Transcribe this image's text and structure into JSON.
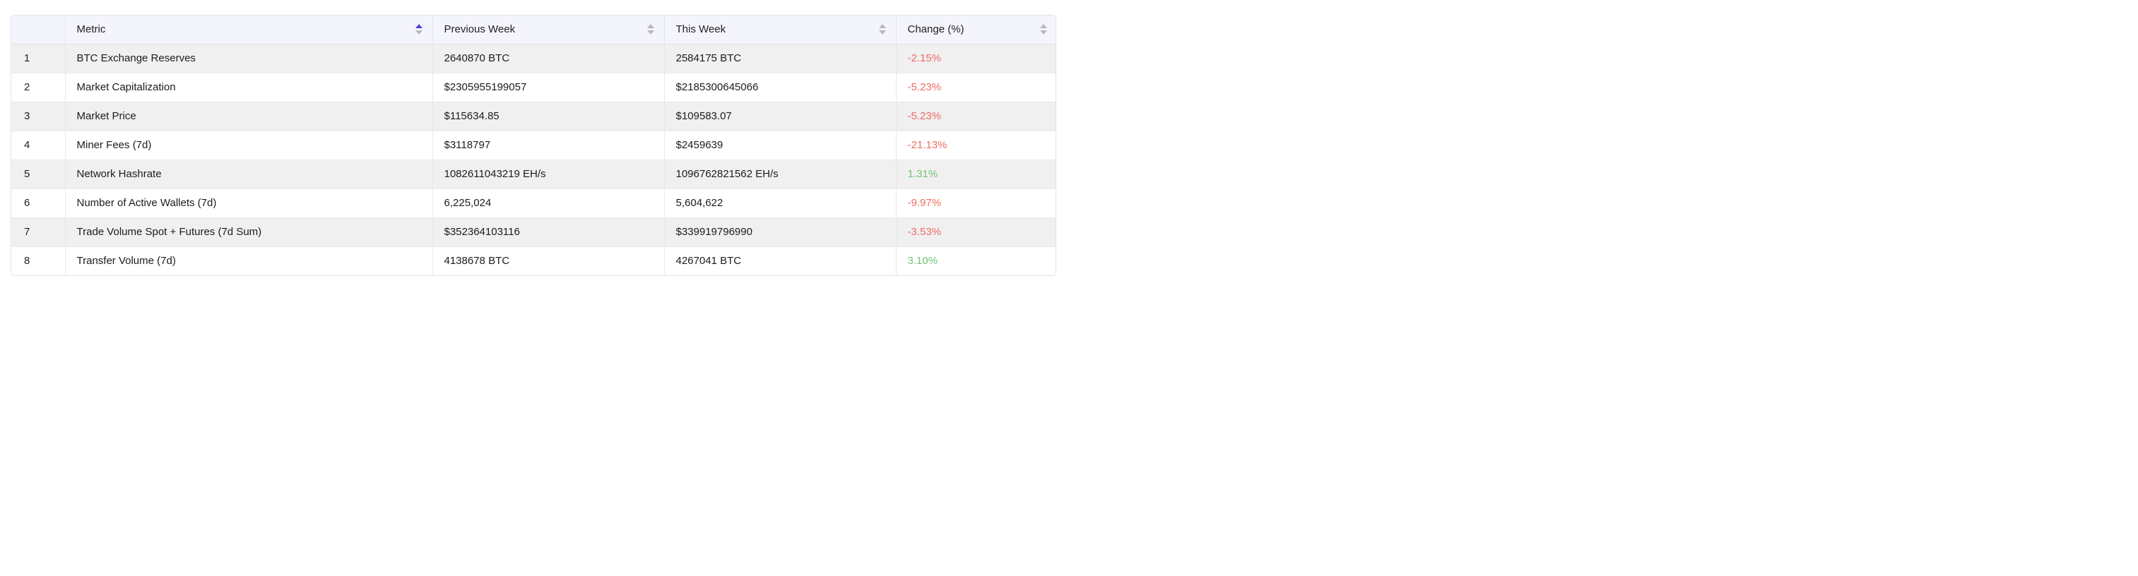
{
  "table": {
    "columns": [
      {
        "label": "",
        "sortable": false,
        "sort": "none"
      },
      {
        "label": "Metric",
        "sortable": true,
        "sort": "asc"
      },
      {
        "label": "Previous Week",
        "sortable": true,
        "sort": "none"
      },
      {
        "label": "This Week",
        "sortable": true,
        "sort": "none"
      },
      {
        "label": "Change (%)",
        "sortable": true,
        "sort": "none"
      }
    ],
    "rows": [
      {
        "index": "1",
        "metric": "BTC Exchange Reserves",
        "previous": "2640870 BTC",
        "current": "2584175 BTC",
        "change": "-2.15%",
        "trend": "down"
      },
      {
        "index": "2",
        "metric": "Market Capitalization",
        "previous": "$2305955199057",
        "current": "$2185300645066",
        "change": "-5.23%",
        "trend": "down"
      },
      {
        "index": "3",
        "metric": "Market Price",
        "previous": "$115634.85",
        "current": "$109583.07",
        "change": "-5.23%",
        "trend": "down"
      },
      {
        "index": "4",
        "metric": "Miner Fees (7d)",
        "previous": "$3118797",
        "current": "$2459639",
        "change": "-21.13%",
        "trend": "down"
      },
      {
        "index": "5",
        "metric": "Network Hashrate",
        "previous": "1082611043219 EH/s",
        "current": "1096762821562 EH/s",
        "change": "1.31%",
        "trend": "up"
      },
      {
        "index": "6",
        "metric": "Number of Active Wallets (7d)",
        "previous": "6,225,024",
        "current": "5,604,622",
        "change": "-9.97%",
        "trend": "down"
      },
      {
        "index": "7",
        "metric": "Trade Volume Spot + Futures (7d Sum)",
        "previous": "$352364103116",
        "current": "$339919796990",
        "change": "-3.53%",
        "trend": "down"
      },
      {
        "index": "8",
        "metric": "Transfer Volume (7d)",
        "previous": "4138678 BTC",
        "current": "4267041 BTC",
        "change": "3.10%",
        "trend": "up"
      }
    ]
  },
  "colors": {
    "header_bg": "#f4f4fc",
    "row_alt_bg": "#f0f0f1",
    "border": "#e3e3e8",
    "negative": "#ed6d62",
    "positive": "#74c374",
    "sort_active": "#4c40e0",
    "sort_inactive": "#b7b7bd"
  }
}
